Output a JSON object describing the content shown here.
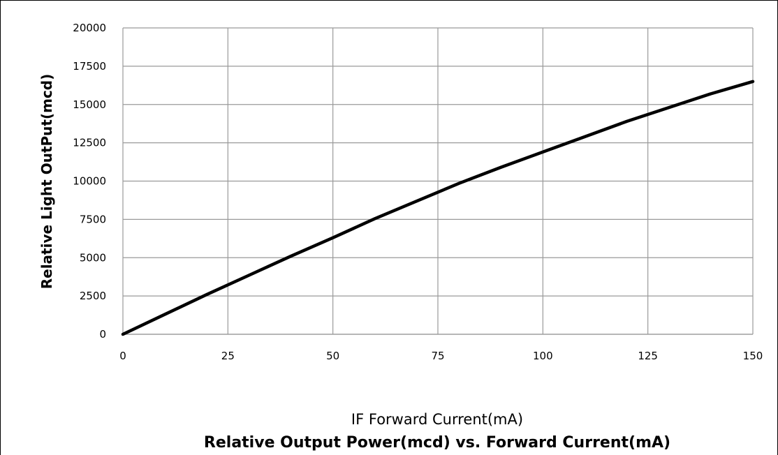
{
  "chart_data": {
    "type": "line",
    "title": "Relative Output Power(mcd) vs. Forward Current(mA)",
    "xlabel": "IF Forward Current(mA)",
    "ylabel": "Relative Light OutPut(mcd)",
    "xlim": [
      0,
      150
    ],
    "ylim": [
      0,
      20000
    ],
    "x_ticks": [
      "0",
      "25",
      "50",
      "75",
      "100",
      "125",
      "150"
    ],
    "y_ticks": [
      "0",
      "2500",
      "5000",
      "7500",
      "10000",
      "12500",
      "15000",
      "17500",
      "20000"
    ],
    "grid": true,
    "legend": "none",
    "series": [
      {
        "color": "#000000",
        "x": [
          0,
          10,
          20,
          30,
          40,
          50,
          60,
          70,
          80,
          90,
          100,
          110,
          120,
          130,
          140,
          150
        ],
        "y": [
          0,
          1300,
          2600,
          3850,
          5100,
          6300,
          7550,
          8700,
          9850,
          10900,
          11900,
          12900,
          13900,
          14800,
          15700,
          16500
        ]
      }
    ]
  }
}
